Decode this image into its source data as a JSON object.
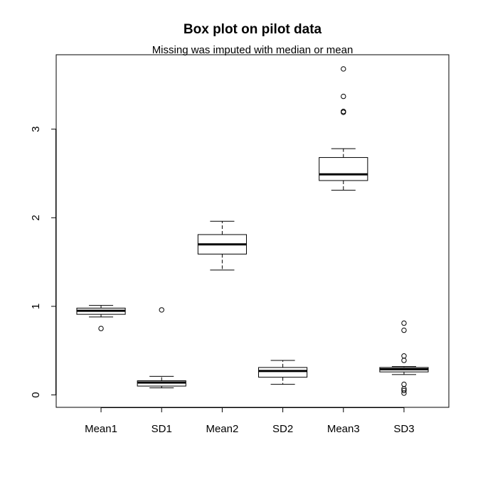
{
  "chart_data": {
    "type": "boxplot",
    "title": "Box plot on pilot data",
    "subtitle": "Missing was imputed with median or mean",
    "xlabel": "",
    "ylabel": "",
    "ylim": [
      -0.14,
      3.84
    ],
    "y_ticks": [
      0,
      1,
      2,
      3
    ],
    "grid": false,
    "categories": [
      "Mean1",
      "SD1",
      "Mean2",
      "SD2",
      "Mean3",
      "SD3"
    ],
    "boxes": [
      {
        "name": "Mean1",
        "whisker_low": 0.88,
        "q1": 0.91,
        "median": 0.95,
        "q3": 0.98,
        "whisker_high": 1.01,
        "outliers": [
          0.75
        ]
      },
      {
        "name": "SD1",
        "whisker_low": 0.08,
        "q1": 0.1,
        "median": 0.14,
        "q3": 0.16,
        "whisker_high": 0.21,
        "outliers": [
          0.96
        ]
      },
      {
        "name": "Mean2",
        "whisker_low": 1.41,
        "q1": 1.59,
        "median": 1.7,
        "q3": 1.81,
        "whisker_high": 1.96,
        "outliers": []
      },
      {
        "name": "SD2",
        "whisker_low": 0.12,
        "q1": 0.2,
        "median": 0.27,
        "q3": 0.31,
        "whisker_high": 0.39,
        "outliers": []
      },
      {
        "name": "Mean3",
        "whisker_low": 2.31,
        "q1": 2.42,
        "median": 2.49,
        "q3": 2.68,
        "whisker_high": 2.78,
        "outliers": [
          3.19,
          3.2,
          3.37,
          3.68
        ]
      },
      {
        "name": "SD3",
        "whisker_low": 0.23,
        "q1": 0.26,
        "median": 0.29,
        "q3": 0.31,
        "whisker_high": 0.32,
        "outliers": [
          0.02,
          0.05,
          0.07,
          0.12,
          0.39,
          0.44,
          0.73,
          0.81
        ]
      }
    ]
  }
}
